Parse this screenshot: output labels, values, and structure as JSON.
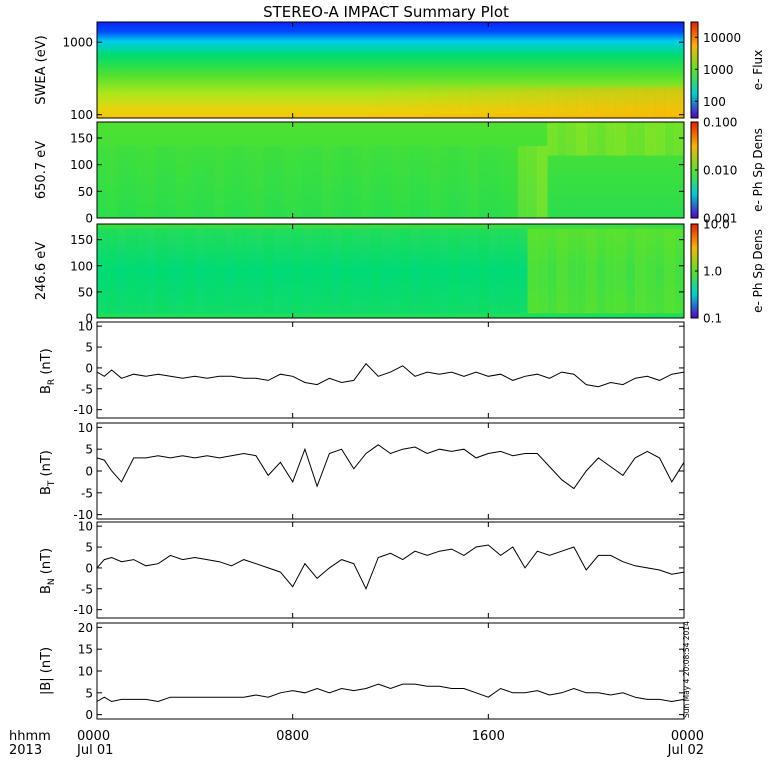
{
  "chart_data": {
    "type": "line",
    "title": "STEREO-A IMPACT Summary Plot",
    "time_axis": {
      "corner_labels": [
        "hhmm",
        "2013"
      ],
      "tick_labels": [
        {
          "time": "0000",
          "date": "Jul 01"
        },
        {
          "time": "0800",
          "date": ""
        },
        {
          "time": "1600",
          "date": ""
        },
        {
          "time": "0000",
          "date": "Jul 02"
        }
      ],
      "range_hours": [
        0,
        24
      ]
    },
    "stamp": "Sun May  4 20:08:54 2014",
    "panels": [
      {
        "id": "swea",
        "type": "heatmap",
        "ylabel": "SWEA (eV)",
        "ylog": true,
        "ylim": [
          90,
          1900
        ],
        "yticks": [
          "1000",
          "100"
        ],
        "ytick_values": [
          1000,
          100
        ],
        "colorbar": {
          "label": "e- Flux",
          "ticks": [
            "10000",
            "1000",
            "100"
          ],
          "tick_values": [
            10000,
            1000,
            100
          ],
          "range": [
            30,
            30000
          ],
          "log": true
        }
      },
      {
        "id": "pad650",
        "type": "heatmap",
        "ylabel": "650.7 eV",
        "ylim": [
          0,
          180
        ],
        "yticks": [
          "150",
          "100",
          "50",
          "0"
        ],
        "ytick_values": [
          150,
          100,
          50,
          0
        ],
        "colorbar": {
          "label": "e- Ph Sp Dens",
          "ticks": [
            "0.100",
            "0.010",
            "0.001"
          ],
          "tick_values": [
            0.1,
            0.01,
            0.001
          ],
          "range": [
            0.001,
            0.1
          ],
          "log": true
        }
      },
      {
        "id": "pad246",
        "type": "heatmap",
        "ylabel": "246.6 eV",
        "ylim": [
          0,
          180
        ],
        "yticks": [
          "150",
          "100",
          "50",
          "0"
        ],
        "ytick_values": [
          150,
          100,
          50,
          0
        ],
        "colorbar": {
          "label": "e- Ph Sp Dens",
          "ticks": [
            "10.0",
            "1.0",
            "0.1"
          ],
          "tick_values": [
            10,
            1,
            0.1
          ],
          "range": [
            0.1,
            10
          ],
          "log": true
        }
      },
      {
        "id": "br",
        "type": "line",
        "ylabel_main": "B",
        "ylabel_sub": "R",
        "ylabel_tail": " (nT)",
        "ylim": [
          -12,
          11
        ],
        "yticks": [
          "10",
          "5",
          "0",
          "-5",
          "-10"
        ],
        "ytick_values": [
          10,
          5,
          0,
          -5,
          -10
        ],
        "x": [
          0,
          0.3,
          0.6,
          1,
          1.5,
          2,
          2.5,
          3,
          3.5,
          4,
          4.5,
          5,
          5.5,
          6,
          6.5,
          7,
          7.5,
          8,
          8.5,
          9,
          9.5,
          10,
          10.5,
          11,
          11.5,
          12,
          12.5,
          13,
          13.5,
          14,
          14.5,
          15,
          15.5,
          16,
          16.5,
          17,
          17.5,
          18,
          18.5,
          19,
          19.5,
          20,
          20.5,
          21,
          21.5,
          22,
          22.5,
          23,
          23.5,
          24
        ],
        "values": [
          -1,
          -2,
          -0.5,
          -2.5,
          -1.5,
          -2,
          -1.5,
          -2,
          -2.5,
          -2,
          -2.5,
          -2,
          -2,
          -2.5,
          -2.5,
          -3,
          -1.5,
          -2,
          -3.5,
          -4,
          -2.5,
          -3.5,
          -3,
          1,
          -2,
          -1,
          0.5,
          -2,
          -1,
          -1.5,
          -1,
          -2,
          -1,
          -2,
          -1.5,
          -3,
          -2,
          -1.5,
          -2.5,
          -1,
          -1.5,
          -4,
          -4.5,
          -3.5,
          -4,
          -2.5,
          -2,
          -3,
          -1.5,
          -1
        ]
      },
      {
        "id": "bt",
        "type": "line",
        "ylabel_main": "B",
        "ylabel_sub": "T",
        "ylabel_tail": " (nT)",
        "ylim": [
          -11,
          11
        ],
        "yticks": [
          "10",
          "5",
          "0",
          "-5",
          "-10"
        ],
        "ytick_values": [
          10,
          5,
          0,
          -5,
          -10
        ],
        "x": [
          0,
          0.3,
          0.6,
          1,
          1.5,
          2,
          2.5,
          3,
          3.5,
          4,
          4.5,
          5,
          5.5,
          6,
          6.5,
          7,
          7.5,
          8,
          8.5,
          9,
          9.5,
          10,
          10.5,
          11,
          11.5,
          12,
          12.5,
          13,
          13.5,
          14,
          14.5,
          15,
          15.5,
          16,
          16.5,
          17,
          17.5,
          18,
          18.5,
          19,
          19.5,
          20,
          20.5,
          21,
          21.5,
          22,
          22.5,
          23,
          23.5,
          24
        ],
        "values": [
          3,
          2.5,
          0,
          -2.5,
          3,
          3,
          3.5,
          3,
          3.5,
          3,
          3.5,
          3,
          3.5,
          4,
          3.5,
          -1,
          2,
          -2.5,
          5,
          -3.5,
          4,
          5,
          0.5,
          4,
          6,
          4,
          5,
          5.5,
          4,
          5,
          4.5,
          5,
          3,
          4,
          4.5,
          3.5,
          4,
          4,
          1,
          -2,
          -4,
          0,
          3,
          1,
          -1,
          3,
          4.5,
          3,
          -2.5,
          2
        ]
      },
      {
        "id": "bn",
        "type": "line",
        "ylabel_main": "B",
        "ylabel_sub": "N",
        "ylabel_tail": " (nT)",
        "ylim": [
          -12,
          11
        ],
        "yticks": [
          "10",
          "5",
          "0",
          "-5",
          "-10"
        ],
        "ytick_values": [
          10,
          5,
          0,
          -5,
          -10
        ],
        "x": [
          0,
          0.3,
          0.6,
          1,
          1.5,
          2,
          2.5,
          3,
          3.5,
          4,
          4.5,
          5,
          5.5,
          6,
          6.5,
          7,
          7.5,
          8,
          8.5,
          9,
          9.5,
          10,
          10.5,
          11,
          11.5,
          12,
          12.5,
          13,
          13.5,
          14,
          14.5,
          15,
          15.5,
          16,
          16.5,
          17,
          17.5,
          18,
          18.5,
          19,
          19.5,
          20,
          20.5,
          21,
          21.5,
          22,
          22.5,
          23,
          23.5,
          24
        ],
        "values": [
          0,
          2,
          2.5,
          1.5,
          2,
          0.5,
          1,
          3,
          2,
          2.5,
          2,
          1.5,
          0.5,
          2,
          1,
          0,
          -1,
          -4.5,
          1,
          -2.5,
          0,
          2,
          1,
          -5,
          2.5,
          3.5,
          2,
          4,
          3,
          4,
          4.5,
          3,
          5,
          5.5,
          3,
          5,
          0,
          4,
          3,
          4,
          5,
          -0.5,
          3,
          3,
          1.5,
          0.5,
          0,
          -0.5,
          -1.5,
          -1
        ]
      },
      {
        "id": "bmag",
        "type": "line",
        "ylabel_main": "|B| (nT)",
        "ylim": [
          -1,
          21
        ],
        "yticks": [
          "20",
          "15",
          "10",
          "5",
          "0"
        ],
        "ytick_values": [
          20,
          15,
          10,
          5,
          0
        ],
        "x": [
          0,
          0.3,
          0.6,
          1,
          1.5,
          2,
          2.5,
          3,
          3.5,
          4,
          4.5,
          5,
          5.5,
          6,
          6.5,
          7,
          7.5,
          8,
          8.5,
          9,
          9.5,
          10,
          10.5,
          11,
          11.5,
          12,
          12.5,
          13,
          13.5,
          14,
          14.5,
          15,
          15.5,
          16,
          16.5,
          17,
          17.5,
          18,
          18.5,
          19,
          19.5,
          20,
          20.5,
          21,
          21.5,
          22,
          22.5,
          23,
          23.5,
          24
        ],
        "values": [
          3,
          4,
          3,
          3.5,
          3.5,
          3.5,
          3,
          4,
          4,
          4,
          4,
          4,
          4,
          4,
          4.5,
          4,
          5,
          5.5,
          5,
          6,
          5,
          6,
          5.5,
          6,
          7,
          6,
          7,
          7,
          6.5,
          6.5,
          6,
          6,
          5,
          4,
          6,
          5,
          5,
          5.5,
          4.5,
          5,
          6,
          5,
          5,
          4.5,
          5,
          4,
          3.5,
          3.5,
          3,
          3.5
        ]
      }
    ]
  }
}
